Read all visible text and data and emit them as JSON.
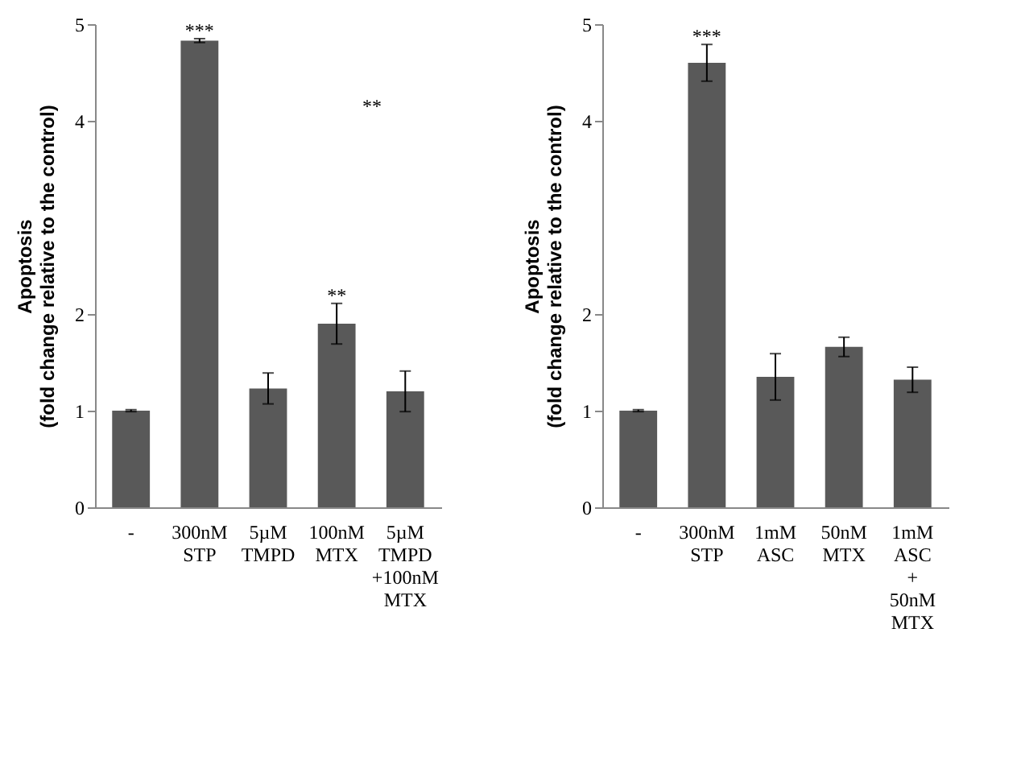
{
  "chart_data": [
    {
      "type": "bar",
      "ylabel": "Apoptosis\n(fold change relative to the control)",
      "categories": [
        "-",
        "300nM STP",
        "5µM TMPD",
        "100nM MTX",
        "5µM TMPD +100nM MTX"
      ],
      "values": [
        1.0,
        4.83,
        1.23,
        1.9,
        1.2
      ],
      "errors": [
        0.01,
        0.02,
        0.16,
        0.21,
        0.21
      ],
      "color": "#595959",
      "ylim": [
        0,
        5
      ],
      "yticks": [
        0,
        1,
        2,
        4,
        5
      ],
      "annotations": [
        {
          "text": "***",
          "x": "300nM STP",
          "y": 4.83
        },
        {
          "text": "**",
          "x": "100nM MTX",
          "y": 1.9
        },
        "**"
      ]
    },
    {
      "type": "bar",
      "ylabel": "Apoptosis\n(fold change relative to the control)",
      "categories": [
        "-",
        "300nM STP",
        "1mM ASC",
        "50nM MTX",
        "1mM ASC + 50nM MTX"
      ],
      "values": [
        1.0,
        4.6,
        1.35,
        1.66,
        1.32
      ],
      "errors": [
        0.01,
        0.19,
        0.24,
        0.1,
        0.13
      ],
      "color": "#595959",
      "ylim": [
        0,
        5
      ],
      "yticks": [
        0,
        1,
        2,
        4,
        5
      ],
      "annotations": [
        {
          "text": "***",
          "x": "300nM STP",
          "y": 4.6
        }
      ]
    }
  ]
}
